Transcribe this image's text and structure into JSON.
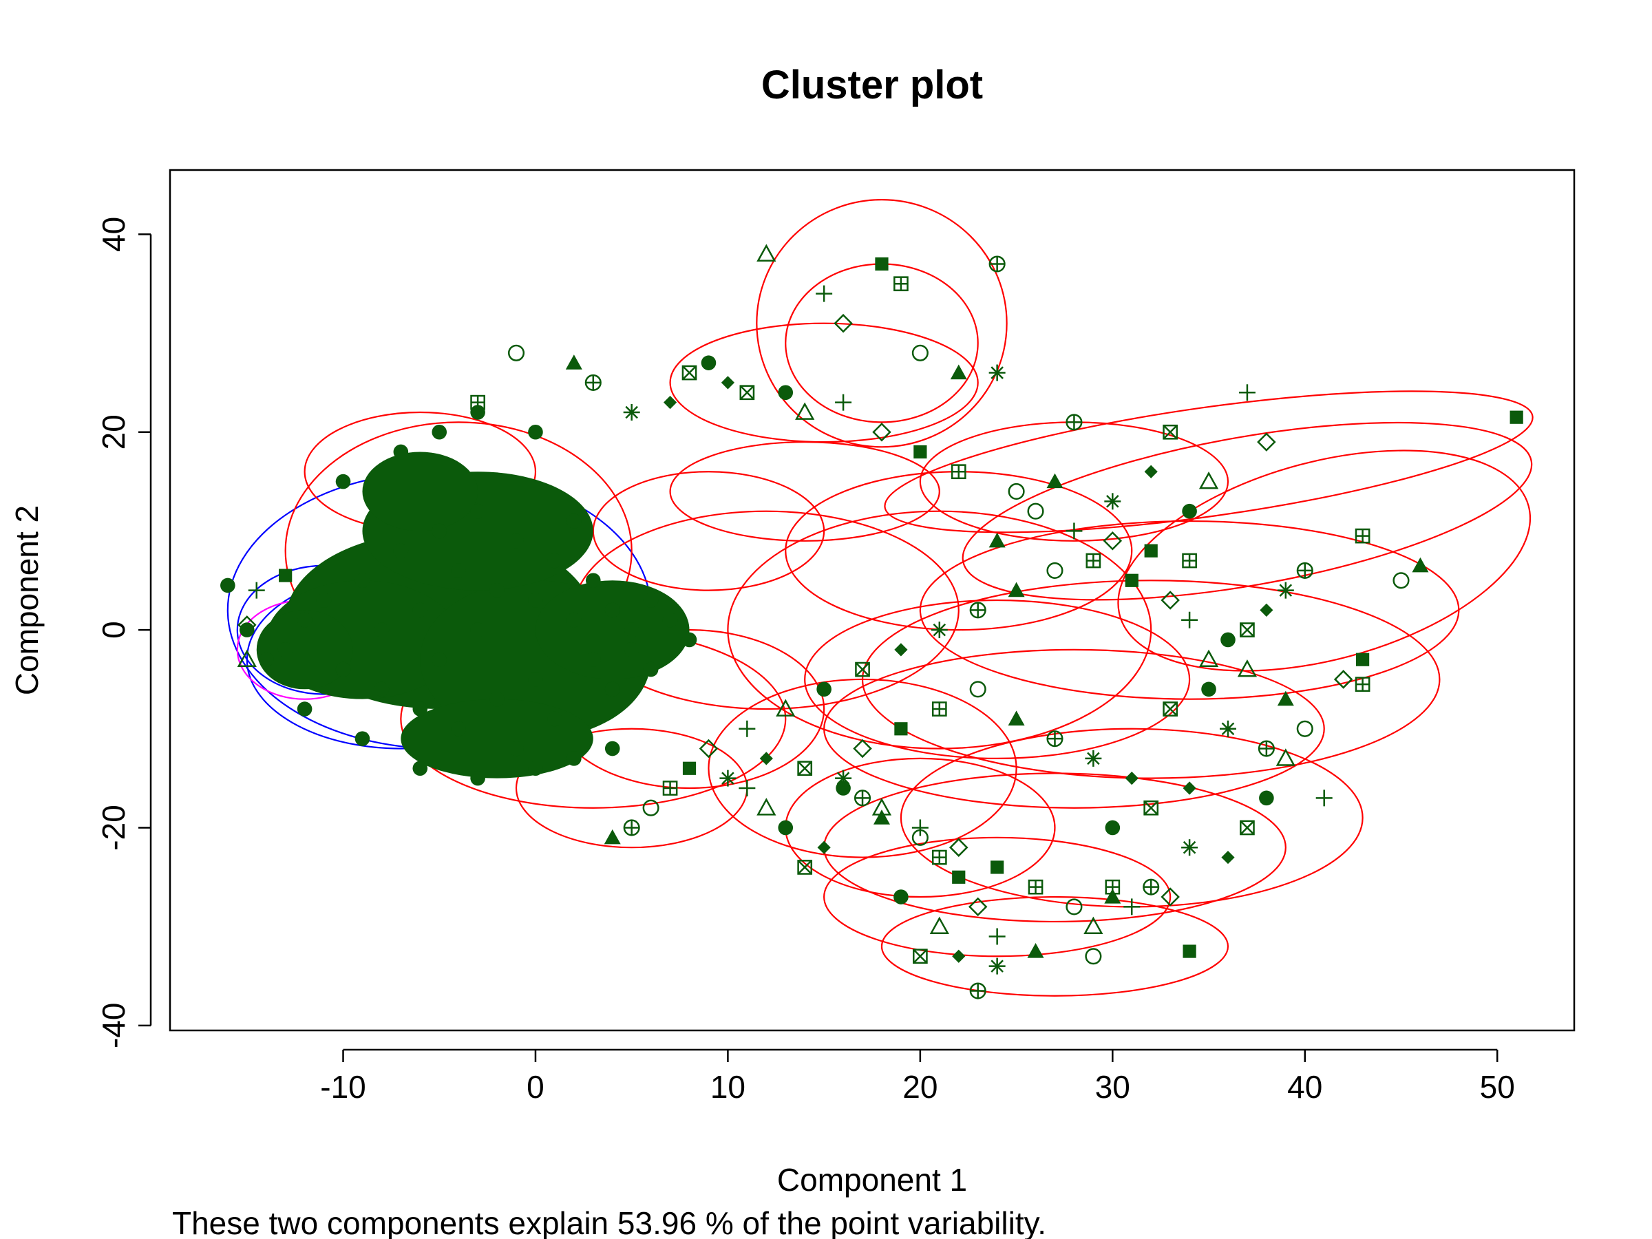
{
  "chart_data": {
    "type": "scatter",
    "title": "Cluster plot",
    "xlabel": "Component 1",
    "ylabel": "Component 2",
    "subtitle": "These two components explain 53.96 % of the point variability.",
    "xlim": [
      -19,
      54
    ],
    "ylim": [
      -40.5,
      46.5
    ],
    "x_ticks": [
      -10,
      0,
      10,
      20,
      30,
      40,
      50
    ],
    "y_ticks": [
      -40,
      -20,
      0,
      20,
      40
    ],
    "grid": false,
    "legend": "none",
    "colors": {
      "points": "#0b5a0b",
      "ellipse_main": "#ff0000",
      "ellipse_core_1": "#0000ff",
      "ellipse_core_2": "#ff00ff",
      "axes": "#000000"
    },
    "series": [
      {
        "marker_style": "dense core cluster",
        "points": [
          [
            -13,
            -2
          ],
          [
            -12,
            1
          ],
          [
            -11,
            3
          ],
          [
            -10,
            -4
          ],
          [
            -9,
            5
          ],
          [
            -8,
            0
          ],
          [
            -8,
            -6
          ],
          [
            -7,
            8
          ],
          [
            -6,
            2
          ],
          [
            -6,
            -8
          ],
          [
            -5,
            10
          ],
          [
            -5,
            -3
          ],
          [
            -4,
            6
          ],
          [
            -4,
            -10
          ],
          [
            -3,
            12
          ],
          [
            -3,
            0
          ],
          [
            -2,
            4
          ],
          [
            -2,
            -7
          ],
          [
            -1,
            9
          ],
          [
            -1,
            -12
          ],
          [
            0,
            3
          ],
          [
            0,
            -5
          ],
          [
            1,
            7
          ],
          [
            1,
            -9
          ],
          [
            2,
            1
          ],
          [
            2,
            11
          ],
          [
            3,
            -3
          ],
          [
            3,
            5
          ],
          [
            4,
            -6
          ],
          [
            4,
            2
          ],
          [
            5,
            0
          ],
          [
            5,
            -2
          ],
          [
            6,
            3
          ],
          [
            6,
            -4
          ],
          [
            7,
            1
          ],
          [
            8,
            -1
          ],
          [
            -14,
            -3
          ],
          [
            -15,
            0
          ],
          [
            -10,
            15
          ],
          [
            -7,
            18
          ],
          [
            -5,
            20
          ],
          [
            -3,
            22
          ],
          [
            0,
            20
          ],
          [
            -12,
            -8
          ],
          [
            -9,
            -11
          ],
          [
            -6,
            -14
          ],
          [
            -3,
            -15
          ],
          [
            0,
            -14
          ],
          [
            2,
            -13
          ],
          [
            4,
            -12
          ]
        ]
      },
      {
        "marker_style": "mixed symbols",
        "points": [
          [
            -16,
            4.5
          ],
          [
            -15,
            -3
          ],
          [
            -14.5,
            4
          ],
          [
            -15,
            0.5
          ],
          [
            -13,
            5.5
          ],
          [
            -3,
            23
          ],
          [
            -1,
            28
          ],
          [
            2,
            27
          ],
          [
            3,
            25
          ],
          [
            5,
            22
          ],
          [
            7,
            23
          ],
          [
            8,
            26
          ],
          [
            9,
            27
          ],
          [
            12,
            38
          ],
          [
            15,
            34
          ],
          [
            16,
            31
          ],
          [
            18,
            37
          ],
          [
            19,
            35
          ],
          [
            20,
            28
          ],
          [
            22,
            26
          ],
          [
            24,
            37
          ],
          [
            24,
            26
          ],
          [
            10,
            25
          ],
          [
            11,
            24
          ],
          [
            13,
            24
          ],
          [
            14,
            22
          ],
          [
            16,
            23
          ],
          [
            18,
            20
          ],
          [
            20,
            18
          ],
          [
            22,
            16
          ],
          [
            25,
            14
          ],
          [
            27,
            15
          ],
          [
            28,
            21
          ],
          [
            30,
            13
          ],
          [
            32,
            16
          ],
          [
            33,
            20
          ],
          [
            34,
            12
          ],
          [
            35,
            15
          ],
          [
            37,
            24
          ],
          [
            38,
            19
          ],
          [
            51,
            21.5
          ],
          [
            43,
            9.5
          ],
          [
            45,
            5
          ],
          [
            46,
            6.5
          ],
          [
            40,
            6
          ],
          [
            39,
            4
          ],
          [
            38,
            2
          ],
          [
            37,
            0
          ],
          [
            36,
            -1
          ],
          [
            35,
            -3
          ],
          [
            34,
            1
          ],
          [
            33,
            3
          ],
          [
            31,
            5
          ],
          [
            29,
            7
          ],
          [
            27,
            6
          ],
          [
            25,
            4
          ],
          [
            23,
            2
          ],
          [
            21,
            0
          ],
          [
            19,
            -2
          ],
          [
            17,
            -4
          ],
          [
            15,
            -6
          ],
          [
            13,
            -8
          ],
          [
            11,
            -10
          ],
          [
            9,
            -12
          ],
          [
            8,
            -14
          ],
          [
            7,
            -16
          ],
          [
            6,
            -18
          ],
          [
            4,
            -21
          ],
          [
            5,
            -20
          ],
          [
            10,
            -15
          ],
          [
            12,
            -13
          ],
          [
            14,
            -14
          ],
          [
            16,
            -16
          ],
          [
            18,
            -18
          ],
          [
            20,
            -20
          ],
          [
            22,
            -22
          ],
          [
            24,
            -24
          ],
          [
            26,
            -26
          ],
          [
            28,
            -28
          ],
          [
            30,
            -27
          ],
          [
            32,
            -26
          ],
          [
            34,
            -22
          ],
          [
            36,
            -23
          ],
          [
            37,
            -20
          ],
          [
            38,
            -17
          ],
          [
            39,
            -13
          ],
          [
            41,
            -17
          ],
          [
            42,
            -5
          ],
          [
            43,
            -3
          ],
          [
            43,
            -5.5
          ],
          [
            40,
            -10
          ],
          [
            39,
            -7
          ],
          [
            38,
            -12
          ],
          [
            36,
            -10
          ],
          [
            34,
            -16
          ],
          [
            32,
            -18
          ],
          [
            30,
            -20
          ],
          [
            29,
            -30
          ],
          [
            31,
            -28
          ],
          [
            33,
            -27
          ],
          [
            34,
            -32.5
          ],
          [
            30,
            -26
          ],
          [
            29,
            -33
          ],
          [
            26,
            -32.5
          ],
          [
            23,
            -36.5
          ],
          [
            24,
            -34
          ],
          [
            22,
            -33
          ],
          [
            20,
            -33
          ],
          [
            19,
            -27
          ],
          [
            21,
            -30
          ],
          [
            24,
            -31
          ],
          [
            23,
            -28
          ],
          [
            22,
            -25
          ],
          [
            21,
            -23
          ],
          [
            20,
            -21
          ],
          [
            18,
            -19
          ],
          [
            17,
            -17
          ],
          [
            16,
            -15
          ],
          [
            15,
            -22
          ],
          [
            14,
            -24
          ],
          [
            13,
            -20
          ],
          [
            12,
            -18
          ],
          [
            11,
            -16
          ],
          [
            17,
            -12
          ],
          [
            19,
            -10
          ],
          [
            21,
            -8
          ],
          [
            23,
            -6
          ],
          [
            25,
            -9
          ],
          [
            27,
            -11
          ],
          [
            29,
            -13
          ],
          [
            31,
            -15
          ],
          [
            33,
            -8
          ],
          [
            35,
            -6
          ],
          [
            37,
            -4
          ],
          [
            28,
            10
          ],
          [
            30,
            9
          ],
          [
            32,
            8
          ],
          [
            34,
            7
          ],
          [
            26,
            12
          ],
          [
            24,
            9
          ]
        ]
      }
    ],
    "ellipses": [
      {
        "cx": -5,
        "cy": 2,
        "rx": 11,
        "ry": 14,
        "angle": 0,
        "color": "ellipse_core_1"
      },
      {
        "cx": -7,
        "cy": -3,
        "rx": 8,
        "ry": 9,
        "angle": 0,
        "color": "ellipse_core_1"
      },
      {
        "cx": -11,
        "cy": 0,
        "rx": 4.5,
        "ry": 6.5,
        "angle": 0,
        "color": "ellipse_core_1"
      },
      {
        "cx": -12,
        "cy": -2,
        "rx": 3.5,
        "ry": 5,
        "angle": 0,
        "color": "ellipse_core_2"
      },
      {
        "cx": -4,
        "cy": 8,
        "rx": 9,
        "ry": 13,
        "angle": 0,
        "color": "ellipse_main"
      },
      {
        "cx": -6,
        "cy": 16,
        "rx": 6,
        "ry": 6,
        "angle": 0,
        "color": "ellipse_main"
      },
      {
        "cx": 3,
        "cy": -9,
        "rx": 10,
        "ry": 9,
        "angle": 0,
        "color": "ellipse_main"
      },
      {
        "cx": 5,
        "cy": -16,
        "rx": 6,
        "ry": 6,
        "angle": 0,
        "color": "ellipse_main"
      },
      {
        "cx": 18,
        "cy": 31,
        "rx": 6.5,
        "ry": 12.5,
        "angle": 0,
        "color": "ellipse_main"
      },
      {
        "cx": 18,
        "cy": 29,
        "rx": 5,
        "ry": 8,
        "angle": 0,
        "color": "ellipse_main"
      },
      {
        "cx": 15,
        "cy": 25,
        "rx": 8,
        "ry": 6,
        "angle": 0,
        "color": "ellipse_main"
      },
      {
        "cx": 37,
        "cy": 12,
        "rx": 15,
        "ry": 7.5,
        "angle": 10,
        "color": "ellipse_main"
      },
      {
        "cx": 41,
        "cy": 7,
        "rx": 11,
        "ry": 10,
        "angle": 15,
        "color": "ellipse_main"
      },
      {
        "cx": 34,
        "cy": 2,
        "rx": 14,
        "ry": 9,
        "angle": 0,
        "color": "ellipse_main"
      },
      {
        "cx": 32,
        "cy": -5,
        "rx": 15,
        "ry": 10,
        "angle": 0,
        "color": "ellipse_main"
      },
      {
        "cx": 28,
        "cy": -10,
        "rx": 13,
        "ry": 8,
        "angle": 0,
        "color": "ellipse_main"
      },
      {
        "cx": 31,
        "cy": -19,
        "rx": 12,
        "ry": 9,
        "angle": 0,
        "color": "ellipse_main"
      },
      {
        "cx": 27,
        "cy": -22,
        "rx": 12,
        "ry": 7.5,
        "angle": 0,
        "color": "ellipse_main"
      },
      {
        "cx": 24,
        "cy": -27,
        "rx": 9,
        "ry": 6,
        "angle": 0,
        "color": "ellipse_main"
      },
      {
        "cx": 27,
        "cy": -32,
        "rx": 9,
        "ry": 5,
        "angle": 0,
        "color": "ellipse_main"
      },
      {
        "cx": 17,
        "cy": -14,
        "rx": 8,
        "ry": 9,
        "angle": 0,
        "color": "ellipse_main"
      },
      {
        "cx": 20,
        "cy": -20,
        "rx": 7,
        "ry": 7,
        "angle": 0,
        "color": "ellipse_main"
      },
      {
        "cx": 21,
        "cy": 0,
        "rx": 11,
        "ry": 12,
        "angle": 0,
        "color": "ellipse_main"
      },
      {
        "cx": 22,
        "cy": 8,
        "rx": 9,
        "ry": 8,
        "angle": 0,
        "color": "ellipse_main"
      },
      {
        "cx": 24,
        "cy": -5,
        "rx": 10,
        "ry": 8,
        "angle": 0,
        "color": "ellipse_main"
      },
      {
        "cx": 12,
        "cy": 2,
        "rx": 10,
        "ry": 10,
        "angle": 0,
        "color": "ellipse_main"
      },
      {
        "cx": 8,
        "cy": -8,
        "rx": 7,
        "ry": 8,
        "angle": 0,
        "color": "ellipse_main"
      },
      {
        "cx": 9,
        "cy": 10,
        "rx": 6,
        "ry": 6,
        "angle": 0,
        "color": "ellipse_main"
      },
      {
        "cx": 28,
        "cy": 15,
        "rx": 8,
        "ry": 6,
        "angle": 0,
        "color": "ellipse_main"
      },
      {
        "cx": 35,
        "cy": 17,
        "rx": 17,
        "ry": 5.5,
        "angle": 8,
        "color": "ellipse_main"
      },
      {
        "cx": 14,
        "cy": 14,
        "rx": 7,
        "ry": 5,
        "angle": 0,
        "color": "ellipse_main"
      }
    ]
  }
}
